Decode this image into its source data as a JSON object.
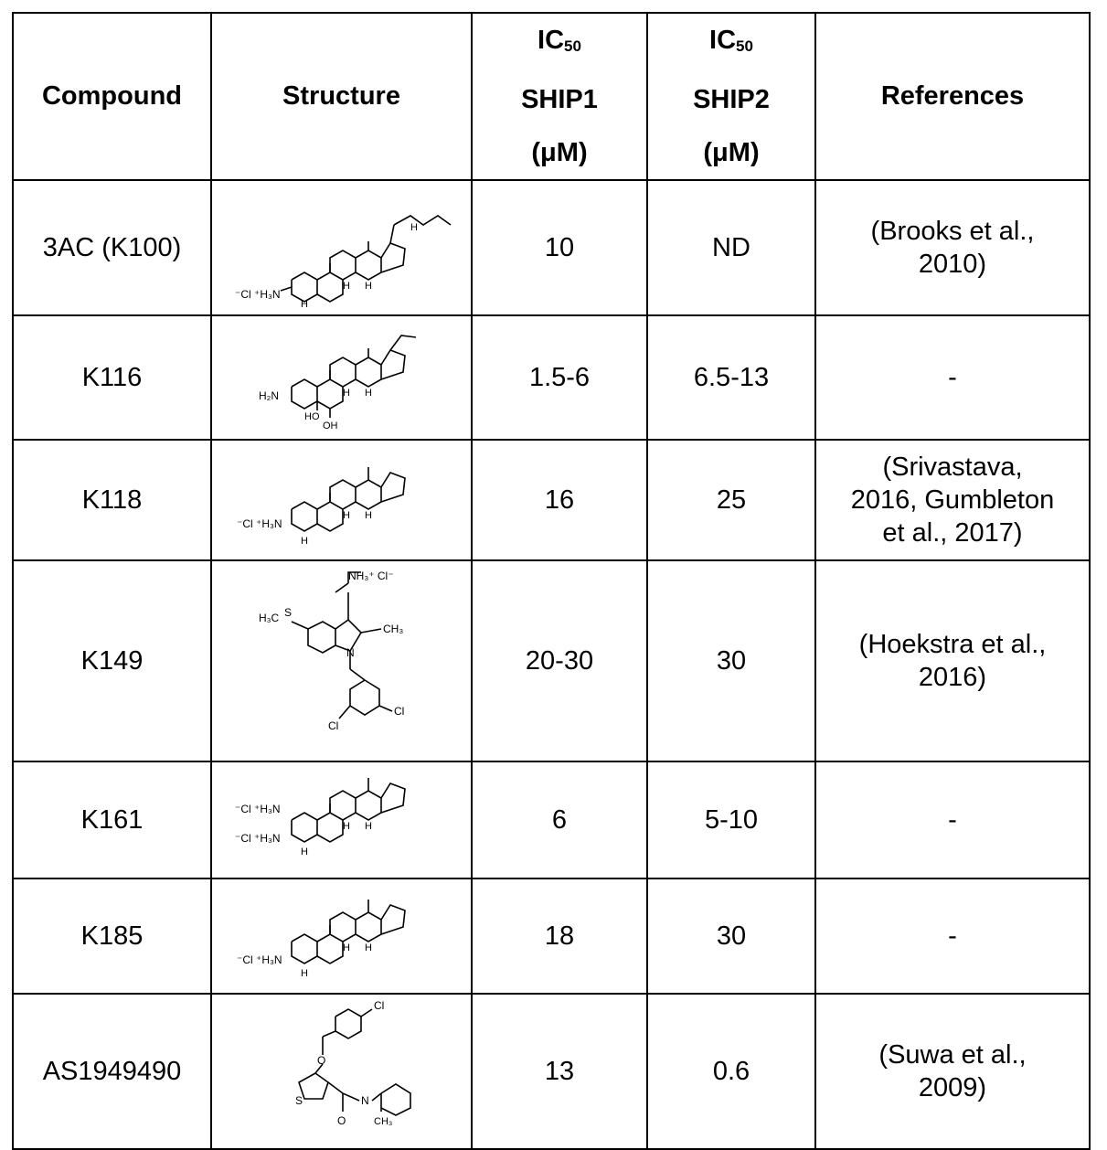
{
  "table": {
    "headers": {
      "compound": "Compound",
      "structure": "Structure",
      "ship1_main": "IC",
      "ship1_sub": "50",
      "ship1_target": "SHIP1",
      "ship1_unit": "(μM)",
      "ship2_main": "IC",
      "ship2_sub": "50",
      "ship2_target": "SHIP2",
      "ship2_unit": "(μM)",
      "references": "References"
    },
    "rows": [
      {
        "compound": "3AC (K100)",
        "ship1": "10",
        "ship2": "ND",
        "ref_line1": "(Brooks et al.,",
        "ref_line2": "2010)",
        "ref_line3": ""
      },
      {
        "compound": "K116",
        "ship1": "1.5-6",
        "ship2": "6.5-13",
        "ref_line1": "-",
        "ref_line2": "",
        "ref_line3": ""
      },
      {
        "compound": "K118",
        "ship1": "16",
        "ship2": "25",
        "ref_line1": "(Srivastava,",
        "ref_line2": "2016, Gumbleton",
        "ref_line3": "et al., 2017)"
      },
      {
        "compound": "K149",
        "ship1": "20-30",
        "ship2": "30",
        "ref_line1": "(Hoekstra et al.,",
        "ref_line2": "2016)",
        "ref_line3": ""
      },
      {
        "compound": "K161",
        "ship1": "6",
        "ship2": "5-10",
        "ref_line1": "-",
        "ref_line2": "",
        "ref_line3": ""
      },
      {
        "compound": "K185",
        "ship1": "18",
        "ship2": "30",
        "ref_line1": "-",
        "ref_line2": "",
        "ref_line3": ""
      },
      {
        "compound": "AS1949490",
        "ship1": "13",
        "ship2": "0.6",
        "ref_line1": "(Suwa et al.,",
        "ref_line2": "2009)",
        "ref_line3": ""
      }
    ]
  },
  "structure_labels": {
    "ammonium_chloride": "⁻Cl ⁺H₃N",
    "amine": "H₂N",
    "h": "H",
    "ho": "HO",
    "oh": "OH",
    "nh3cl": "NH₃⁺ Cl⁻",
    "h3c": "H₃C",
    "s": "S",
    "ch3": "CH₃",
    "n": "N",
    "cl": "Cl",
    "o": "O",
    "nh": "H\nN"
  }
}
